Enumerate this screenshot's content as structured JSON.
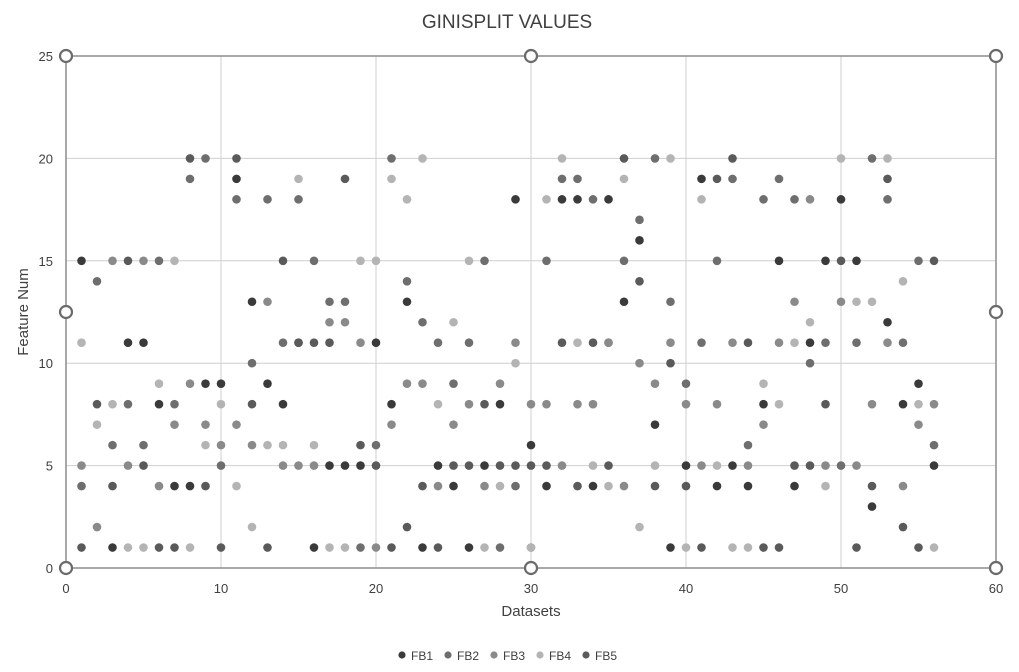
{
  "chart_data": {
    "type": "scatter",
    "title": "GINISPLIT VALUES",
    "xlabel": "Datasets",
    "ylabel": "Feature Num",
    "xlim": [
      0,
      60
    ],
    "ylim": [
      0,
      25
    ],
    "xticks": [
      0,
      10,
      20,
      30,
      40,
      50,
      60
    ],
    "yticks": [
      0,
      5,
      10,
      15,
      20,
      25
    ],
    "grid": true,
    "legend": "bottom",
    "series": [
      {
        "name": "FB1",
        "color": "#3a3a3a",
        "points": [
          [
            1,
            15
          ],
          [
            3,
            1
          ],
          [
            4,
            11
          ],
          [
            5,
            11
          ],
          [
            6,
            8
          ],
          [
            7,
            4
          ],
          [
            8,
            4
          ],
          [
            9,
            9
          ],
          [
            10,
            9
          ],
          [
            11,
            19
          ],
          [
            12,
            13
          ],
          [
            13,
            9
          ],
          [
            14,
            8
          ],
          [
            15,
            11
          ],
          [
            16,
            1
          ],
          [
            17,
            5
          ],
          [
            18,
            5
          ],
          [
            19,
            5
          ],
          [
            20,
            11
          ],
          [
            21,
            8
          ],
          [
            22,
            13
          ],
          [
            23,
            1
          ],
          [
            24,
            5
          ],
          [
            25,
            4
          ],
          [
            26,
            1
          ],
          [
            27,
            5
          ],
          [
            28,
            8
          ],
          [
            29,
            18
          ],
          [
            30,
            6
          ],
          [
            31,
            4
          ],
          [
            32,
            18
          ],
          [
            33,
            18
          ],
          [
            34,
            4
          ],
          [
            35,
            18
          ],
          [
            36,
            13
          ],
          [
            37,
            16
          ],
          [
            38,
            7
          ],
          [
            39,
            1
          ],
          [
            40,
            5
          ],
          [
            41,
            19
          ],
          [
            42,
            4
          ],
          [
            43,
            5
          ],
          [
            44,
            4
          ],
          [
            45,
            8
          ],
          [
            46,
            15
          ],
          [
            47,
            4
          ],
          [
            48,
            11
          ],
          [
            49,
            15
          ],
          [
            50,
            18
          ],
          [
            51,
            15
          ],
          [
            52,
            3
          ],
          [
            53,
            12
          ],
          [
            54,
            8
          ],
          [
            55,
            9
          ],
          [
            56,
            5
          ]
        ]
      },
      {
        "name": "FB2",
        "color": "#6e6e6e",
        "points": [
          [
            1,
            4
          ],
          [
            2,
            14
          ],
          [
            3,
            6
          ],
          [
            4,
            8
          ],
          [
            5,
            6
          ],
          [
            6,
            15
          ],
          [
            7,
            8
          ],
          [
            8,
            19
          ],
          [
            9,
            20
          ],
          [
            10,
            5
          ],
          [
            11,
            18
          ],
          [
            12,
            10
          ],
          [
            13,
            18
          ],
          [
            14,
            11
          ],
          [
            15,
            18
          ],
          [
            16,
            15
          ],
          [
            17,
            13
          ],
          [
            18,
            13
          ],
          [
            19,
            1
          ],
          [
            20,
            6
          ],
          [
            21,
            20
          ],
          [
            22,
            14
          ],
          [
            23,
            12
          ],
          [
            24,
            11
          ],
          [
            25,
            9
          ],
          [
            26,
            11
          ],
          [
            27,
            15
          ],
          [
            28,
            1
          ],
          [
            29,
            4
          ],
          [
            30,
            1
          ],
          [
            31,
            15
          ],
          [
            32,
            19
          ],
          [
            33,
            19
          ],
          [
            34,
            18
          ],
          [
            35,
            11
          ],
          [
            36,
            15
          ],
          [
            37,
            17
          ],
          [
            38,
            20
          ],
          [
            39,
            13
          ],
          [
            40,
            9
          ],
          [
            41,
            11
          ],
          [
            42,
            15
          ],
          [
            43,
            19
          ],
          [
            44,
            6
          ],
          [
            45,
            18
          ],
          [
            46,
            19
          ],
          [
            47,
            18
          ],
          [
            48,
            10
          ],
          [
            49,
            11
          ],
          [
            50,
            5
          ],
          [
            51,
            11
          ],
          [
            52,
            20
          ],
          [
            53,
            18
          ],
          [
            54,
            11
          ],
          [
            55,
            15
          ],
          [
            56,
            6
          ]
        ]
      },
      {
        "name": "FB3",
        "color": "#8a8a8a",
        "points": [
          [
            1,
            5
          ],
          [
            2,
            2
          ],
          [
            3,
            15
          ],
          [
            4,
            5
          ],
          [
            5,
            15
          ],
          [
            6,
            4
          ],
          [
            7,
            7
          ],
          [
            8,
            9
          ],
          [
            9,
            7
          ],
          [
            10,
            6
          ],
          [
            11,
            7
          ],
          [
            12,
            6
          ],
          [
            13,
            13
          ],
          [
            14,
            5
          ],
          [
            15,
            5
          ],
          [
            16,
            5
          ],
          [
            17,
            12
          ],
          [
            18,
            12
          ],
          [
            19,
            11
          ],
          [
            20,
            1
          ],
          [
            21,
            7
          ],
          [
            22,
            9
          ],
          [
            23,
            9
          ],
          [
            24,
            4
          ],
          [
            25,
            7
          ],
          [
            26,
            8
          ],
          [
            27,
            4
          ],
          [
            28,
            9
          ],
          [
            29,
            11
          ],
          [
            30,
            8
          ],
          [
            31,
            8
          ],
          [
            32,
            5
          ],
          [
            33,
            8
          ],
          [
            34,
            8
          ],
          [
            35,
            11
          ],
          [
            36,
            4
          ],
          [
            37,
            10
          ],
          [
            38,
            9
          ],
          [
            39,
            11
          ],
          [
            40,
            8
          ],
          [
            41,
            5
          ],
          [
            42,
            8
          ],
          [
            43,
            11
          ],
          [
            44,
            5
          ],
          [
            45,
            7
          ],
          [
            46,
            11
          ],
          [
            47,
            13
          ],
          [
            48,
            18
          ],
          [
            49,
            5
          ],
          [
            50,
            13
          ],
          [
            51,
            5
          ],
          [
            52,
            8
          ],
          [
            53,
            11
          ],
          [
            54,
            4
          ],
          [
            55,
            7
          ],
          [
            56,
            8
          ]
        ]
      },
      {
        "name": "FB4",
        "color": "#b4b4b4",
        "points": [
          [
            1,
            11
          ],
          [
            2,
            7
          ],
          [
            3,
            8
          ],
          [
            4,
            1
          ],
          [
            5,
            1
          ],
          [
            6,
            9
          ],
          [
            7,
            15
          ],
          [
            8,
            1
          ],
          [
            9,
            6
          ],
          [
            10,
            8
          ],
          [
            11,
            4
          ],
          [
            12,
            2
          ],
          [
            13,
            6
          ],
          [
            14,
            6
          ],
          [
            15,
            19
          ],
          [
            16,
            6
          ],
          [
            17,
            1
          ],
          [
            18,
            1
          ],
          [
            19,
            15
          ],
          [
            20,
            15
          ],
          [
            21,
            19
          ],
          [
            22,
            18
          ],
          [
            23,
            20
          ],
          [
            24,
            8
          ],
          [
            25,
            12
          ],
          [
            26,
            15
          ],
          [
            27,
            1
          ],
          [
            28,
            4
          ],
          [
            29,
            10
          ],
          [
            30,
            1
          ],
          [
            31,
            18
          ],
          [
            32,
            20
          ],
          [
            33,
            11
          ],
          [
            34,
            5
          ],
          [
            35,
            4
          ],
          [
            36,
            19
          ],
          [
            37,
            2
          ],
          [
            38,
            5
          ],
          [
            39,
            20
          ],
          [
            40,
            1
          ],
          [
            41,
            18
          ],
          [
            42,
            5
          ],
          [
            43,
            1
          ],
          [
            44,
            1
          ],
          [
            45,
            9
          ],
          [
            46,
            8
          ],
          [
            47,
            11
          ],
          [
            48,
            12
          ],
          [
            49,
            4
          ],
          [
            50,
            20
          ],
          [
            51,
            13
          ],
          [
            52,
            13
          ],
          [
            53,
            20
          ],
          [
            54,
            14
          ],
          [
            55,
            8
          ],
          [
            56,
            1
          ]
        ]
      },
      {
        "name": "FB5",
        "color": "#5a5a5a",
        "points": [
          [
            1,
            1
          ],
          [
            2,
            8
          ],
          [
            3,
            4
          ],
          [
            4,
            15
          ],
          [
            5,
            5
          ],
          [
            6,
            1
          ],
          [
            7,
            1
          ],
          [
            8,
            20
          ],
          [
            9,
            4
          ],
          [
            10,
            1
          ],
          [
            11,
            20
          ],
          [
            12,
            8
          ],
          [
            13,
            1
          ],
          [
            14,
            15
          ],
          [
            15,
            11
          ],
          [
            16,
            11
          ],
          [
            17,
            11
          ],
          [
            18,
            19
          ],
          [
            19,
            6
          ],
          [
            20,
            5
          ],
          [
            21,
            1
          ],
          [
            22,
            2
          ],
          [
            23,
            4
          ],
          [
            24,
            1
          ],
          [
            25,
            5
          ],
          [
            26,
            5
          ],
          [
            27,
            8
          ],
          [
            28,
            5
          ],
          [
            29,
            5
          ],
          [
            30,
            5
          ],
          [
            31,
            5
          ],
          [
            32,
            11
          ],
          [
            33,
            4
          ],
          [
            34,
            11
          ],
          [
            35,
            5
          ],
          [
            36,
            20
          ],
          [
            37,
            14
          ],
          [
            38,
            4
          ],
          [
            39,
            10
          ],
          [
            40,
            4
          ],
          [
            41,
            1
          ],
          [
            42,
            19
          ],
          [
            43,
            20
          ],
          [
            44,
            11
          ],
          [
            45,
            1
          ],
          [
            46,
            1
          ],
          [
            47,
            5
          ],
          [
            48,
            5
          ],
          [
            49,
            8
          ],
          [
            50,
            15
          ],
          [
            51,
            1
          ],
          [
            52,
            4
          ],
          [
            53,
            19
          ],
          [
            54,
            2
          ],
          [
            55,
            1
          ],
          [
            56,
            15
          ]
        ]
      }
    ]
  }
}
